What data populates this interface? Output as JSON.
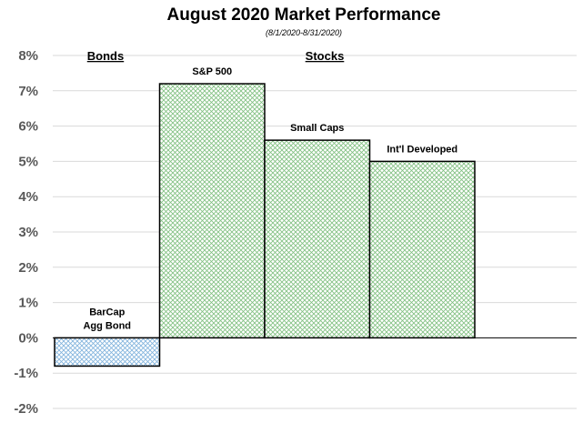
{
  "chart_data": {
    "type": "bar",
    "title": "August 2020 Market Performance",
    "subtitle": "(8/1/2020-8/31/2020)",
    "xlabel": "",
    "ylabel": "",
    "ylim": [
      -2,
      8
    ],
    "y_ticks": [
      "-2%",
      "-1%",
      "0%",
      "1%",
      "2%",
      "3%",
      "4%",
      "5%",
      "6%",
      "7%",
      "8%"
    ],
    "grid": true,
    "legend": "none",
    "group_labels": [
      "Bonds",
      "Stocks"
    ],
    "categories": [
      "BarCap\nAgg Bond",
      "S&P 500",
      "Small Caps",
      "Int'l Developed"
    ],
    "values": [
      -0.8,
      7.2,
      5.6,
      5.0
    ],
    "colors": {
      "bond_fill": "#7fb2dc",
      "stock_fill": "#7fbf7f",
      "bar_edge": "#000000",
      "grid": "#d9d9d9",
      "axis_text": "#595959"
    }
  }
}
